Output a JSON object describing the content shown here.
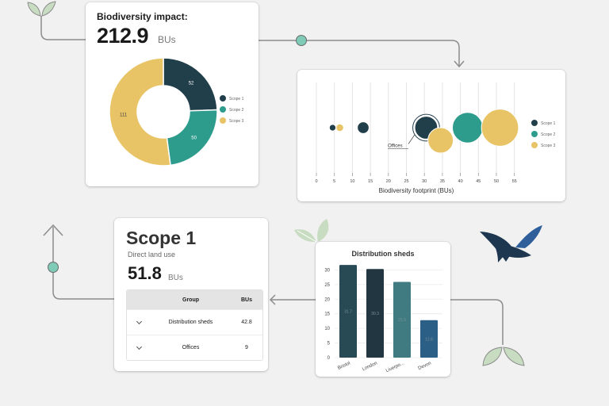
{
  "impact": {
    "title": "Biodiversity impact:",
    "value": "212.9",
    "unit": "BUs",
    "donut": {
      "slices": [
        {
          "name": "Scope 1",
          "value": 52,
          "label": "52",
          "color": "#213f4b"
        },
        {
          "name": "Scope 2",
          "value": 50,
          "label": "50",
          "color": "#2e9c8c"
        },
        {
          "name": "Scope 3",
          "value": 111,
          "label": "111",
          "color": "#e8c466"
        }
      ]
    }
  },
  "bubble": {
    "xlabel": "Biodiversity footprint (BUs)",
    "xticks": [
      "0",
      "5",
      "10",
      "15",
      "20",
      "25",
      "30",
      "35",
      "40",
      "45",
      "50",
      "55"
    ],
    "annotation": "Offices",
    "legend": [
      {
        "name": "Scope 1",
        "color": "#213f4b"
      },
      {
        "name": "Scope 2",
        "color": "#2e9c8c"
      },
      {
        "name": "Scope 3",
        "color": "#e8c466"
      }
    ],
    "points": [
      {
        "x": 4.5,
        "row": 0,
        "size": 1.3,
        "color": "#213f4b"
      },
      {
        "x": 6.5,
        "row": 0,
        "size": 1.5,
        "color": "#e8c466"
      },
      {
        "x": 13,
        "row": 0,
        "size": 2.3,
        "color": "#213f4b"
      },
      {
        "x": 30.5,
        "row": 0,
        "size": 4.5,
        "color": "#213f4b",
        "highlight": true
      },
      {
        "x": 34.5,
        "row": 1,
        "size": 5,
        "color": "#e8c466"
      },
      {
        "x": 42,
        "row": 0,
        "size": 6,
        "color": "#2e9c8c"
      },
      {
        "x": 51,
        "row": 0,
        "size": 7.3,
        "color": "#e8c466"
      }
    ]
  },
  "scope": {
    "title": "Scope 1",
    "subtitle": "Direct land use",
    "value": "51.8",
    "unit": "BUs",
    "table": {
      "headers": {
        "group": "Group",
        "bus": "BUs"
      },
      "rows": [
        {
          "group": "Distribution sheds",
          "bus": "42.8"
        },
        {
          "group": "Offices",
          "bus": "9"
        }
      ]
    }
  },
  "chart_data": {
    "type": "bar",
    "title": "Distribution sheds",
    "categories": [
      "Bristol",
      "London",
      "Liverpo...",
      "Devon"
    ],
    "values": [
      31.7,
      30.3,
      25.9,
      12.8
    ],
    "value_labels": [
      "31.7",
      "30.3",
      "25.9",
      "12.8"
    ],
    "colors": [
      "#274a55",
      "#213640",
      "#3f7b80",
      "#2c5f86"
    ],
    "yticks": [
      "0",
      "5",
      "10",
      "15",
      "20",
      "25",
      "30"
    ],
    "ylim": [
      0,
      32
    ],
    "grid": true
  },
  "colors": {
    "connector": "#8c8c8c",
    "node": "#7fcbb8",
    "leaf_light": "#c7dcc0",
    "leaf_dark": "#9fc39a",
    "bird_dark": "#1e3750",
    "bird_light": "#2e5f9a"
  }
}
